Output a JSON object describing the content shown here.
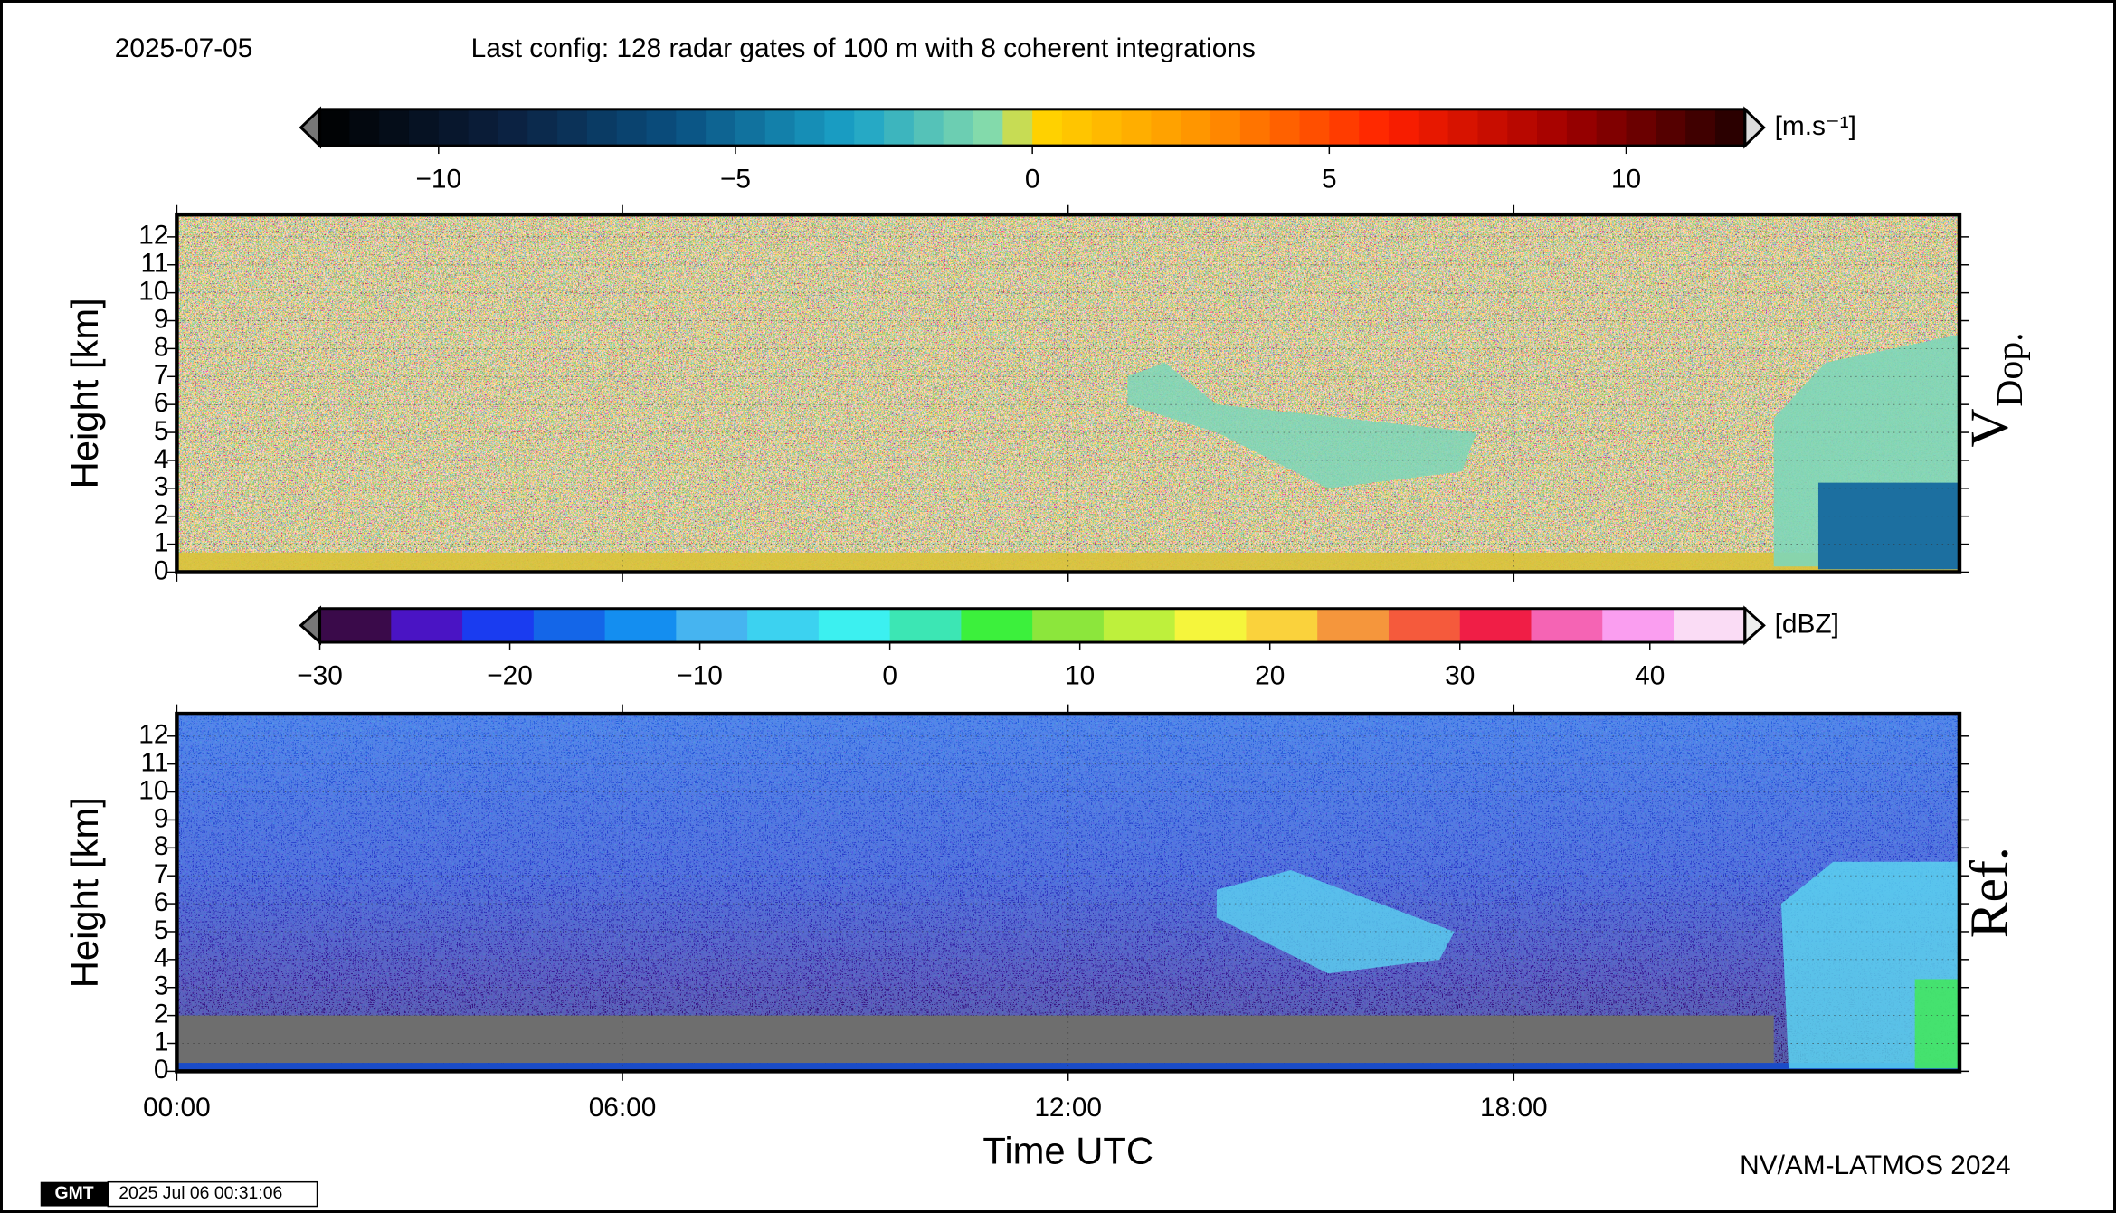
{
  "header": {
    "date": "2025-07-05",
    "title": "Last config: 128 radar gates of 100 m with 8 coherent integrations",
    "credit": "NV/AM-LATMOS 2024",
    "logo": "GMT",
    "timestamp": "2025 Jul 06 00:31:06"
  },
  "chart_data": [
    {
      "type": "heatmap",
      "ylabel": "Height [km]",
      "panel_label": "V",
      "panel_label_sub": "Dop.",
      "ylim": [
        0,
        12.8
      ],
      "yticks": [
        0,
        1,
        2,
        3,
        4,
        5,
        6,
        7,
        8,
        9,
        10,
        11,
        12
      ],
      "colorbar": {
        "unit": "[m.s⁻¹]",
        "lim": [
          -12,
          12
        ],
        "ticks": [
          {
            "value": -10,
            "label": "−10"
          },
          {
            "value": -5,
            "label": "−5"
          },
          0,
          5,
          10
        ]
      }
    },
    {
      "type": "heatmap",
      "ylabel": "Height [km]",
      "panel_label": "Ref.",
      "xlabel": "Time UTC",
      "ylim": [
        0,
        12.8
      ],
      "yticks": [
        0,
        1,
        2,
        3,
        4,
        5,
        6,
        7,
        8,
        9,
        10,
        11,
        12
      ],
      "xlim": [
        0,
        24
      ],
      "xticks": [
        {
          "value": 0,
          "label": "00:00"
        },
        {
          "value": 6,
          "label": "06:00"
        },
        {
          "value": 12,
          "label": "12:00"
        },
        {
          "value": 18,
          "label": "18:00"
        }
      ],
      "colorbar": {
        "unit": "[dBZ]",
        "lim": [
          -30,
          45
        ],
        "ticks": [
          {
            "value": -30,
            "label": "−30"
          },
          {
            "value": -20,
            "label": "−20"
          },
          {
            "value": -10,
            "label": "−10"
          },
          0,
          10,
          20,
          30,
          40
        ],
        "colors": [
          "#3a0a4a",
          "#4a14c4",
          "#1a3cf0",
          "#1466e8",
          "#148ef0",
          "#46b4f0",
          "#3cd2f0",
          "#3cf0f0",
          "#3ce6b4",
          "#3cf03c",
          "#8ce63c",
          "#bef03c",
          "#f5f53c",
          "#fad23c",
          "#f5963c",
          "#f55a3c",
          "#f01e46",
          "#f564b4",
          "#fa9ef0",
          "#fadcf5"
        ]
      }
    }
  ]
}
